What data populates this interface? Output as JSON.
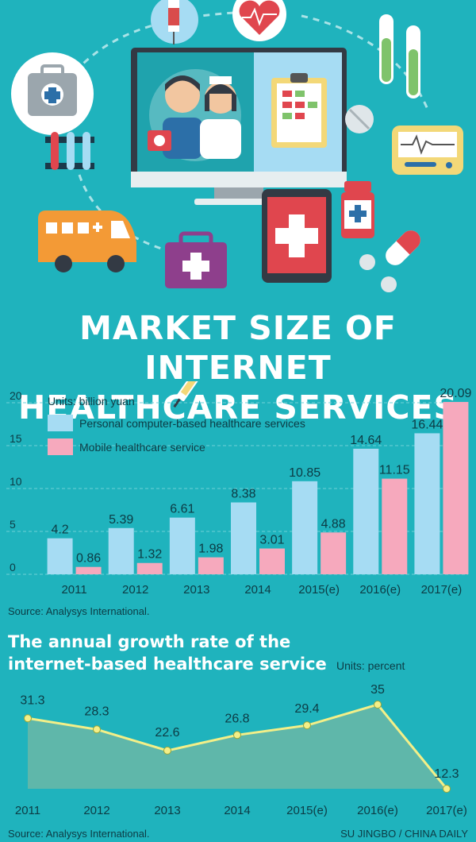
{
  "title_lines": [
    "MARKET SIZE OF INTERNET",
    "HEALTHCARE SERVICES"
  ],
  "chart_data": [
    {
      "type": "bar",
      "units": "Units: billion yuan",
      "categories": [
        "2011",
        "2012",
        "2013",
        "2014",
        "2015(e)",
        "2016(e)",
        "2017(e)"
      ],
      "series": [
        {
          "name": "Personal computer-based healthcare services",
          "color": "#a6dcf3",
          "values": [
            4.2,
            5.39,
            6.61,
            8.38,
            10.85,
            14.64,
            16.44
          ],
          "labels": [
            "4.2",
            "5.39",
            "6.61",
            "8.38",
            "10.85",
            "14.64",
            "16.44"
          ]
        },
        {
          "name": "Mobile healthcare service",
          "color": "#f6a9bd",
          "values": [
            0.86,
            1.32,
            1.98,
            3.01,
            4.88,
            11.15,
            20.09
          ],
          "labels": [
            "0.86",
            "1.32",
            "1.98",
            "3.01",
            "4.88",
            "11.15",
            "20.09"
          ]
        }
      ],
      "ylim": [
        0,
        20
      ],
      "yticks": [
        "0",
        "5",
        "10",
        "15",
        "20"
      ],
      "legend_position": "top-left",
      "grid": true
    },
    {
      "type": "area",
      "title_lines": [
        "The annual growth rate of the",
        "internet-based healthcare service"
      ],
      "units": "Units: percent",
      "categories": [
        "2011",
        "2012",
        "2013",
        "2014",
        "2015(e)",
        "2016(e)",
        "2017(e)"
      ],
      "values": [
        31.3,
        28.3,
        22.6,
        26.8,
        29.4,
        35,
        12.3
      ],
      "labels": [
        "31.3",
        "28.3",
        "22.6",
        "26.8",
        "29.4",
        "35",
        "12.3"
      ],
      "color_fill": "#5fb7aa",
      "color_line": "#f3ef88"
    }
  ],
  "source_1": "Source: Analysys International.",
  "source_2": "Source: Analysys International.",
  "credit": "SU JINGBO / CHINA DAILY",
  "colors": {
    "background": "#1fb3bd",
    "pc": "#a6dcf3",
    "mobile": "#f6a9bd",
    "line": "#f3ef88",
    "area": "#5fb7aa"
  }
}
